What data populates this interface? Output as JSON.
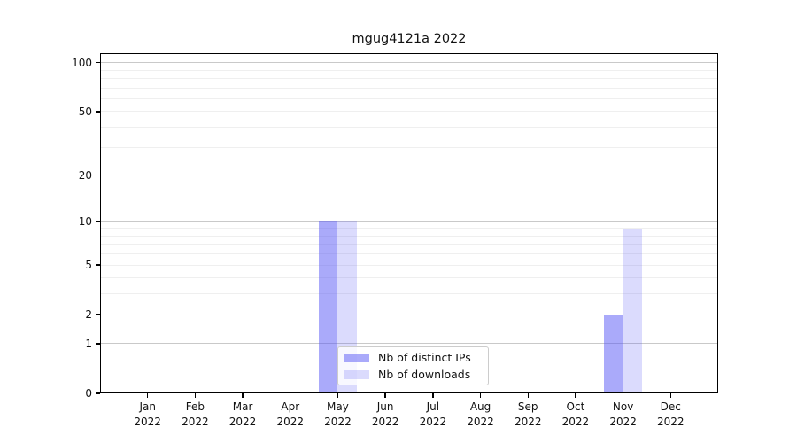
{
  "chart_data": {
    "type": "bar",
    "title": "mgug4121a 2022",
    "categories": [
      "Jan",
      "Feb",
      "Mar",
      "Apr",
      "May",
      "Jun",
      "Jul",
      "Aug",
      "Sep",
      "Oct",
      "Nov",
      "Dec"
    ],
    "category_year": "2022",
    "series": [
      {
        "name": "Nb of distinct IPs",
        "color": "rgba(85,85,245,0.5)",
        "values": [
          0,
          0,
          0,
          0,
          10,
          0,
          0,
          0,
          0,
          0,
          2,
          0
        ]
      },
      {
        "name": "Nb of downloads",
        "color": "rgba(85,85,245,0.21)",
        "values": [
          0,
          0,
          0,
          0,
          10,
          0,
          0,
          0,
          0,
          0,
          9,
          0
        ]
      }
    ],
    "xlabel": "",
    "ylabel": "",
    "y_axis": {
      "scale": "log10(1+x)",
      "ticks": [
        0,
        1,
        2,
        5,
        10,
        20,
        50,
        100
      ],
      "decade_gridlines": [
        1,
        10,
        100
      ],
      "minor_gridlines": [
        3,
        4,
        6,
        7,
        8,
        9,
        30,
        40,
        60,
        70,
        80,
        90
      ],
      "ylim": [
        0,
        115
      ]
    },
    "grid": true,
    "legend_position": "lower center",
    "colors": {
      "spine": "#000000",
      "decade_grid": "#c9c9c9",
      "minor_grid": "#efefef",
      "text": "#111111",
      "legend_border": "#cccccc"
    }
  }
}
